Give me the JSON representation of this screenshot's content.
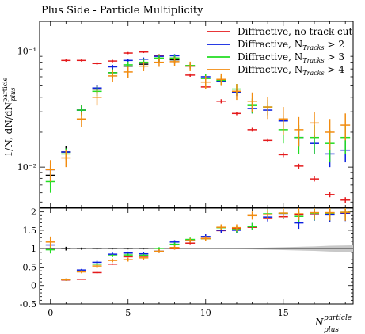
{
  "title": "Plus Side - Particle Multiplicity",
  "ylabel_main": "1/N, dN/dN",
  "ylabel_sup": "particle",
  "ylabel_sub": "plus",
  "xlabel_main": "N",
  "xlabel_sup": "particle",
  "xlabel_sub": "plus",
  "colors": {
    "red": "#e41a1c",
    "blue": "#0a1fe0",
    "green": "#22dd22",
    "orange": "#f28c10",
    "black": "#000000",
    "band": "#c8c8c8"
  },
  "chart_data": {
    "type": "scatter",
    "title": "Plus Side - Particle Multiplicity",
    "main": {
      "yscale": "log",
      "xlim": [
        -0.7,
        19.5
      ],
      "ylim": [
        0.0045,
        0.18
      ],
      "y_ticks": [
        {
          "v": 0.01,
          "label": "10⁻²"
        },
        {
          "v": 0.1,
          "label": "10⁻¹"
        }
      ],
      "x": [
        0,
        1,
        2,
        3,
        4,
        5,
        6,
        7,
        8,
        9,
        10,
        11,
        12,
        13,
        14,
        15,
        16,
        17,
        18,
        19
      ],
      "series": [
        {
          "name": "",
          "color": "black",
          "values": [
            0.0085,
            0.0135,
            0.031,
            0.047,
            0.065,
            0.074,
            0.077,
            0.086,
            0.084,
            null,
            null,
            null,
            null,
            null,
            null,
            null,
            null,
            null,
            null,
            null
          ],
          "err": [
            0.0015,
            0.0017,
            0.003,
            0.004,
            0.006,
            0.006,
            0.006,
            0.006,
            0.006,
            null,
            null,
            null,
            null,
            null,
            null,
            null,
            null,
            null,
            null,
            null
          ]
        },
        {
          "name": "Diffractive, no track cut",
          "color": "red",
          "values": [
            null,
            0.083,
            0.083,
            0.078,
            0.082,
            0.096,
            0.098,
            0.092,
            0.087,
            0.062,
            0.049,
            0.037,
            0.029,
            0.021,
            0.017,
            0.0128,
            0.0102,
            0.0079,
            0.0058,
            0.0052
          ],
          "err": [
            null,
            0.002,
            0.002,
            0.002,
            0.002,
            0.002,
            0.002,
            0.002,
            0.002,
            0.002,
            0.002,
            0.0015,
            0.001,
            0.0008,
            0.0007,
            0.0006,
            0.0005,
            0.0004,
            0.0003,
            0.0003
          ]
        },
        {
          "name": "Diffractive, N_Tracks > 2",
          "color": "blue",
          "values": [
            0.0095,
            0.0135,
            0.031,
            0.048,
            0.073,
            0.083,
            0.085,
            0.09,
            0.091,
            0.074,
            0.06,
            0.055,
            0.044,
            0.032,
            0.031,
            0.025,
            0.018,
            0.016,
            0.013,
            0.014
          ],
          "err": [
            0.001,
            0.001,
            0.002,
            0.003,
            0.003,
            0.003,
            0.003,
            0.003,
            0.003,
            0.003,
            0.003,
            0.003,
            0.003,
            0.003,
            0.003,
            0.003,
            0.003,
            0.003,
            0.003,
            0.003
          ]
        },
        {
          "name": "Diffractive, N_Tracks > 3",
          "color": "green",
          "values": [
            0.0075,
            0.013,
            0.031,
            0.045,
            0.065,
            0.076,
            0.08,
            0.087,
            0.087,
            0.075,
            0.058,
            0.056,
            0.047,
            0.034,
            0.033,
            0.021,
            0.018,
            0.018,
            0.016,
            0.018
          ],
          "err": [
            0.0015,
            0.0015,
            0.003,
            0.004,
            0.005,
            0.005,
            0.005,
            0.005,
            0.005,
            0.005,
            0.005,
            0.005,
            0.005,
            0.005,
            0.005,
            0.005,
            0.005,
            0.005,
            0.005,
            0.005
          ]
        },
        {
          "name": "Diffractive, N_Tracks > 4",
          "color": "orange",
          "values": [
            0.0095,
            0.012,
            0.026,
            0.04,
            0.061,
            0.066,
            0.074,
            0.08,
            0.081,
            0.074,
            0.054,
            0.057,
            0.045,
            0.037,
            0.033,
            0.026,
            0.021,
            0.024,
            0.02,
            0.023
          ],
          "err": [
            0.002,
            0.002,
            0.004,
            0.006,
            0.007,
            0.007,
            0.007,
            0.007,
            0.007,
            0.007,
            0.007,
            0.007,
            0.007,
            0.007,
            0.007,
            0.007,
            0.006,
            0.006,
            0.006,
            0.006
          ]
        }
      ]
    },
    "ratio": {
      "yscale": "linear",
      "ylim": [
        -0.5,
        2.1
      ],
      "y_ticks": [
        {
          "v": -0.5,
          "label": "-0.5"
        },
        {
          "v": 0,
          "label": "0"
        },
        {
          "v": 0.5,
          "label": "0.5"
        },
        {
          "v": 1,
          "label": "1"
        },
        {
          "v": 1.5,
          "label": "1.5"
        },
        {
          "v": 2,
          "label": "2"
        }
      ],
      "x_ticks": [
        {
          "v": 0,
          "label": "0"
        },
        {
          "v": 5,
          "label": "5"
        },
        {
          "v": 10,
          "label": "10"
        },
        {
          "v": 15,
          "label": "15"
        }
      ],
      "band": {
        "x": [
          9,
          11,
          13,
          15,
          17,
          18,
          19.5
        ],
        "half_width": [
          0,
          0.01,
          0.02,
          0.04,
          0.06,
          0.08,
          0.09
        ]
      },
      "series": [
        {
          "color": "black",
          "values": [
            1,
            1,
            1,
            1,
            1,
            1,
            1,
            1,
            1,
            null,
            null,
            null,
            null,
            null,
            null,
            null,
            null,
            null,
            null,
            null
          ],
          "err": [
            0.1,
            0.05,
            0.03,
            0.02,
            0.02,
            0.02,
            0.02,
            0.02,
            0.02,
            null,
            null,
            null,
            null,
            null,
            null,
            null,
            null,
            null,
            null,
            null
          ]
        },
        {
          "color": "red",
          "values": [
            null,
            0.15,
            0.17,
            0.35,
            0.58,
            0.78,
            0.79,
            0.92,
            1.02,
            1.15,
            1.28,
            1.49,
            1.55,
            1.58,
            1.82,
            1.87,
            1.92,
            1.93,
            1.94,
            1.95
          ],
          "err": [
            null,
            0.01,
            0.01,
            0.02,
            0.02,
            0.02,
            0.02,
            0.02,
            0.02,
            0.03,
            0.03,
            0.04,
            0.04,
            0.05,
            0.05,
            0.06,
            0.07,
            0.08,
            0.08,
            0.09
          ]
        },
        {
          "color": "blue",
          "values": [
            1.1,
            0.16,
            0.42,
            0.63,
            0.85,
            0.88,
            0.86,
            0.93,
            1.18,
            1.22,
            1.33,
            1.5,
            1.5,
            1.6,
            1.86,
            1.94,
            1.7,
            1.94,
            1.92,
            1.97
          ],
          "err": [
            0.08,
            0.03,
            0.03,
            0.04,
            0.04,
            0.04,
            0.04,
            0.04,
            0.05,
            0.05,
            0.06,
            0.07,
            0.08,
            0.1,
            0.12,
            0.14,
            0.16,
            0.18,
            0.2,
            0.22
          ]
        },
        {
          "color": "green",
          "values": [
            0.97,
            0.16,
            0.38,
            0.58,
            0.81,
            0.83,
            0.82,
            1.0,
            1.12,
            1.25,
            1.27,
            1.57,
            1.52,
            1.6,
            1.95,
            1.95,
            1.88,
            1.95,
            1.97,
            1.99
          ],
          "err": [
            0.1,
            0.03,
            0.03,
            0.04,
            0.04,
            0.04,
            0.04,
            0.04,
            0.05,
            0.05,
            0.06,
            0.07,
            0.08,
            0.1,
            0.12,
            0.14,
            0.16,
            0.18,
            0.2,
            0.22
          ]
        },
        {
          "color": "orange",
          "values": [
            1.18,
            0.16,
            0.37,
            0.53,
            0.68,
            0.7,
            0.75,
            0.93,
            1.03,
            1.22,
            1.27,
            1.58,
            1.57,
            1.9,
            1.93,
            1.97,
            1.95,
            1.98,
            1.98,
            1.99
          ],
          "err": [
            0.15,
            0.03,
            0.04,
            0.05,
            0.05,
            0.05,
            0.05,
            0.05,
            0.06,
            0.06,
            0.07,
            0.08,
            0.09,
            0.11,
            0.13,
            0.15,
            0.17,
            0.19,
            0.21,
            0.23
          ]
        }
      ]
    },
    "legend": {
      "placement": "top-right",
      "entries": [
        {
          "color": "red",
          "text": "Diffractive, no track cut",
          "subscript": "",
          "suffix": ""
        },
        {
          "color": "blue",
          "text": "Diffractive, N",
          "subscript": "Tracks",
          "suffix": " > 2"
        },
        {
          "color": "green",
          "text": "Diffractive, N",
          "subscript": "Tracks",
          "suffix": " > 3"
        },
        {
          "color": "orange",
          "text": "Diffractive, N",
          "subscript": "Tracks",
          "suffix": " > 4"
        }
      ]
    }
  }
}
